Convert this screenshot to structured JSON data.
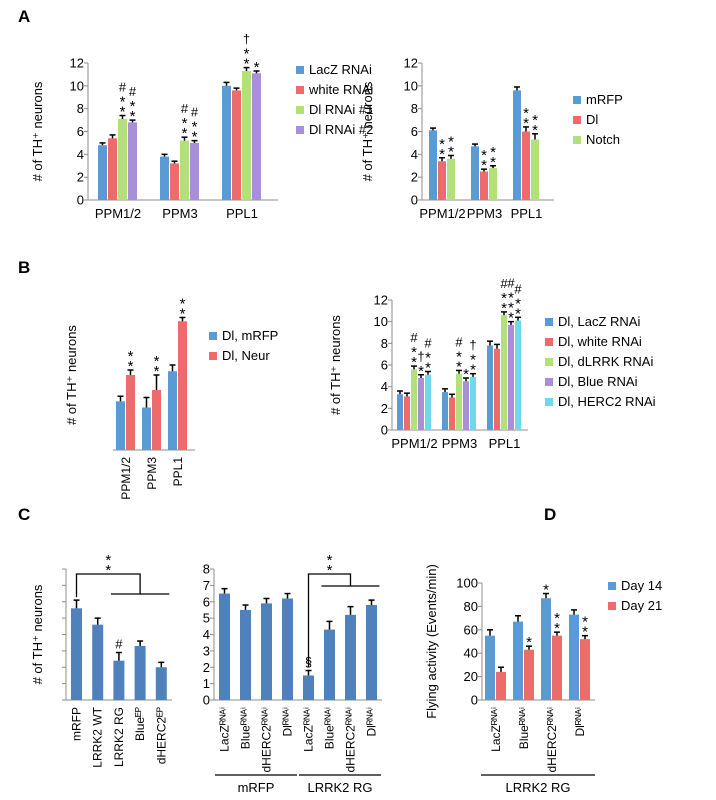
{
  "panel_letters": [
    "A",
    "B",
    "C",
    "D"
  ],
  "colors": {
    "blue": "#5b9bd5",
    "red": "#ee6b6b",
    "green": "#b3e07a",
    "purple": "#a98fd8",
    "cyan": "#6fd9ea",
    "steel": "#4f81bd"
  },
  "chart_data": [
    {
      "id": "A1",
      "type": "bar",
      "panel": "A",
      "ylabel": "# of TH⁺ neurons",
      "ylim": [
        0,
        12
      ],
      "yticks": [
        0,
        2,
        4,
        6,
        8,
        10,
        12
      ],
      "categories": [
        "PPM1/2",
        "PPM3",
        "PPL1"
      ],
      "legend_position": "right",
      "series": [
        {
          "name": "LacZ RNAi",
          "color": "blue",
          "values": [
            4.8,
            3.8,
            10.0
          ],
          "errors": [
            0.2,
            0.2,
            0.3
          ]
        },
        {
          "name": "white RNAi",
          "color": "red",
          "values": [
            5.4,
            3.2,
            9.6
          ],
          "errors": [
            0.3,
            0.2,
            0.2
          ]
        },
        {
          "name": "Dl RNAi #1",
          "color": "green",
          "values": [
            7.1,
            5.2,
            11.3
          ],
          "errors": [
            0.3,
            0.3,
            0.3
          ]
        },
        {
          "name": "Dl RNAi #2",
          "color": "purple",
          "values": [
            6.8,
            5.0,
            11.1
          ],
          "errors": [
            0.2,
            0.2,
            0.2
          ]
        }
      ],
      "annotations": [
        {
          "cat": 0,
          "ser": 2,
          "lines": [
            "#",
            "*",
            "*"
          ]
        },
        {
          "cat": 0,
          "ser": 3,
          "lines": [
            "#",
            "*",
            "*"
          ]
        },
        {
          "cat": 1,
          "ser": 2,
          "lines": [
            "#",
            "*",
            "*"
          ]
        },
        {
          "cat": 1,
          "ser": 3,
          "lines": [
            "#",
            "*",
            "*"
          ]
        },
        {
          "cat": 2,
          "ser": 2,
          "lines": [
            "†",
            "*",
            "*"
          ]
        },
        {
          "cat": 2,
          "ser": 3,
          "lines": [
            "*"
          ]
        }
      ]
    },
    {
      "id": "A2",
      "type": "bar",
      "panel": "A",
      "ylabel": "# of TH⁺ neurons",
      "ylim": [
        0,
        12
      ],
      "yticks": [
        0,
        2,
        4,
        6,
        8,
        10,
        12
      ],
      "categories": [
        "PPM1/2",
        "PPM3",
        "PPL1"
      ],
      "legend_position": "right",
      "series": [
        {
          "name": "mRFP",
          "color": "blue",
          "values": [
            6.1,
            4.7,
            9.6
          ],
          "errors": [
            0.2,
            0.2,
            0.3
          ]
        },
        {
          "name": "Dl",
          "color": "red",
          "values": [
            3.4,
            2.5,
            6.0
          ],
          "errors": [
            0.3,
            0.2,
            0.4
          ]
        },
        {
          "name": "Notch",
          "color": "green",
          "values": [
            3.6,
            2.8,
            5.3
          ],
          "errors": [
            0.3,
            0.2,
            0.5
          ]
        }
      ],
      "annotations": [
        {
          "cat": 0,
          "ser": 1,
          "lines": [
            "*",
            "*"
          ]
        },
        {
          "cat": 0,
          "ser": 2,
          "lines": [
            "*",
            "*"
          ]
        },
        {
          "cat": 1,
          "ser": 1,
          "lines": [
            "*",
            "*"
          ]
        },
        {
          "cat": 1,
          "ser": 2,
          "lines": [
            "*",
            "*"
          ]
        },
        {
          "cat": 2,
          "ser": 1,
          "lines": [
            "*",
            "*"
          ]
        },
        {
          "cat": 2,
          "ser": 2,
          "lines": [
            "*",
            "*"
          ]
        }
      ]
    },
    {
      "id": "B1",
      "type": "bar",
      "panel": "B",
      "ylabel": "# of TH⁺ neurons",
      "ylim": [
        0,
        12
      ],
      "yticks": [],
      "categories": [
        "PPM1/2",
        "PPM3",
        "PPL1"
      ],
      "tick_rotation": -90,
      "legend_position": "right",
      "series": [
        {
          "name": "Dl, mRFP",
          "color": "blue",
          "values": [
            3.9,
            3.4,
            6.3
          ],
          "errors": [
            0.4,
            0.8,
            0.5
          ]
        },
        {
          "name": "Dl, Neur",
          "color": "red",
          "values": [
            6.0,
            4.8,
            10.3
          ],
          "errors": [
            0.4,
            1.2,
            0.3
          ]
        }
      ],
      "annotations": [
        {
          "cat": 0,
          "ser": 1,
          "lines": [
            "*",
            "*"
          ]
        },
        {
          "cat": 1,
          "ser": 1,
          "lines": [
            "*",
            "*"
          ]
        },
        {
          "cat": 2,
          "ser": 1,
          "lines": [
            "*",
            "*"
          ]
        }
      ]
    },
    {
      "id": "B2",
      "type": "bar",
      "panel": "B",
      "ylabel": "# of TH⁺ neurons",
      "ylim": [
        0,
        12
      ],
      "yticks": [
        0,
        2,
        4,
        6,
        8,
        10,
        12
      ],
      "categories": [
        "PPM1/2",
        "PPM3",
        "PPL1"
      ],
      "legend_position": "right",
      "series": [
        {
          "name": "Dl, LacZ RNAi",
          "color": "blue",
          "values": [
            3.3,
            3.5,
            7.8
          ],
          "errors": [
            0.3,
            0.3,
            0.4
          ]
        },
        {
          "name": "Dl, white RNAi",
          "color": "red",
          "values": [
            3.1,
            3.0,
            7.5
          ],
          "errors": [
            0.3,
            0.3,
            0.4
          ]
        },
        {
          "name": "Dl, dLRRK RNAi",
          "color": "green",
          "values": [
            5.6,
            5.2,
            10.6
          ],
          "errors": [
            0.3,
            0.3,
            0.3
          ]
        },
        {
          "name": "Dl, Blue RNAi",
          "color": "purple",
          "values": [
            4.8,
            4.5,
            9.7
          ],
          "errors": [
            0.3,
            0.3,
            0.3
          ]
        },
        {
          "name": "Dl, HERC2 RNAi",
          "color": "cyan",
          "values": [
            5.1,
            4.9,
            10.1
          ],
          "errors": [
            0.3,
            0.3,
            0.3
          ]
        }
      ],
      "annotations": [
        {
          "cat": 0,
          "ser": 2,
          "lines": [
            "#",
            "*",
            "*"
          ]
        },
        {
          "cat": 0,
          "ser": 3,
          "lines": [
            "†",
            "*"
          ]
        },
        {
          "cat": 0,
          "ser": 4,
          "lines": [
            "#",
            "*",
            "*"
          ]
        },
        {
          "cat": 1,
          "ser": 2,
          "lines": [
            "#",
            "*",
            "*"
          ]
        },
        {
          "cat": 1,
          "ser": 3,
          "lines": [
            "*"
          ]
        },
        {
          "cat": 1,
          "ser": 4,
          "lines": [
            "†",
            "*",
            "*"
          ]
        },
        {
          "cat": 2,
          "ser": 2,
          "lines": [
            "#",
            "*",
            "*"
          ]
        },
        {
          "cat": 2,
          "ser": 3,
          "lines": [
            "#",
            "*",
            "*",
            "*"
          ]
        },
        {
          "cat": 2,
          "ser": 4,
          "lines": [
            "#",
            "*",
            "*"
          ]
        }
      ]
    },
    {
      "id": "C1",
      "type": "bar",
      "panel": "C",
      "ylabel": "# of TH⁺ neurons",
      "ylim": [
        0,
        8
      ],
      "yticks": [
        0,
        1,
        2,
        3,
        4,
        5,
        6,
        7,
        8
      ],
      "categories": [
        "mRFP",
        "LRRK2 WT",
        "LRRK2 RG",
        "Blueᴱᴾ",
        "dHERC2ᴱᴾ"
      ],
      "tick_rotation": -90,
      "series": [
        {
          "name": "",
          "color": "steel",
          "values": [
            5.6,
            4.6,
            2.4,
            3.3,
            2.0
          ],
          "errors": [
            0.5,
            0.4,
            0.5,
            0.3,
            0.3
          ]
        }
      ],
      "annotations": [
        {
          "cat": 2,
          "ser": 0,
          "lines": [
            "#"
          ]
        }
      ],
      "bracket_label": [
        "*",
        "*"
      ]
    },
    {
      "id": "C2",
      "type": "bar",
      "panel": "C",
      "ylabel": "",
      "ylim": [
        0,
        8
      ],
      "yticks": [
        0,
        1,
        2,
        3,
        4,
        5,
        6,
        7,
        8
      ],
      "categories": [
        "LacZᴿᴺᴬⁱ",
        "Blueᴿᴺᴬⁱ",
        "dHERC2ᴿᴺᴬⁱ",
        "Dlᴿᴺᴬⁱ",
        "LacZᴿᴺᴬⁱ",
        "Blueᴿᴺᴬⁱ",
        "dHERC2ᴿᴺᴬⁱ",
        "Dlᴿᴺᴬⁱ"
      ],
      "tick_rotation": -90,
      "groups": [
        {
          "label": "mRFP",
          "start": 0,
          "end": 3
        },
        {
          "label": "LRRK2 RG",
          "start": 4,
          "end": 7
        }
      ],
      "series": [
        {
          "name": "",
          "color": "steel",
          "values": [
            6.5,
            5.5,
            5.9,
            6.2,
            1.5,
            4.3,
            5.2,
            5.8
          ],
          "errors": [
            0.3,
            0.3,
            0.3,
            0.3,
            0.3,
            0.5,
            0.5,
            0.3
          ]
        }
      ],
      "annotations": [
        {
          "cat": 4,
          "ser": 0,
          "lines": [
            "§"
          ]
        }
      ],
      "bracket_label": [
        "*",
        "*"
      ]
    },
    {
      "id": "D",
      "type": "bar",
      "panel": "D",
      "ylabel": "Flying activity (Events/min)",
      "ylim": [
        0,
        100
      ],
      "yticks": [
        0,
        20,
        40,
        60,
        80,
        100
      ],
      "categories": [
        "LacZᴿᴺᴬⁱ",
        "Blueᴿᴺᴬⁱ",
        "dHERC2ᴿᴺᴬⁱ",
        "Dlᴿᴺᴬⁱ"
      ],
      "tick_rotation": -90,
      "legend_position": "right",
      "groups": [
        {
          "label": "LRRK2 RG",
          "start": 0,
          "end": 3
        }
      ],
      "series": [
        {
          "name": "Day 14",
          "color": "blue",
          "values": [
            55,
            67,
            87,
            73
          ],
          "errors": [
            5,
            5,
            4,
            4
          ]
        },
        {
          "name": "Day 21",
          "color": "red",
          "values": [
            24,
            43,
            55,
            52
          ],
          "errors": [
            4,
            3,
            3,
            3
          ]
        }
      ],
      "annotations": [
        {
          "cat": 1,
          "ser": 1,
          "lines": [
            "*"
          ]
        },
        {
          "cat": 2,
          "ser": 0,
          "lines": [
            "*"
          ]
        },
        {
          "cat": 2,
          "ser": 1,
          "lines": [
            "*",
            "*"
          ]
        },
        {
          "cat": 3,
          "ser": 1,
          "lines": [
            "*",
            "*"
          ]
        }
      ]
    }
  ]
}
